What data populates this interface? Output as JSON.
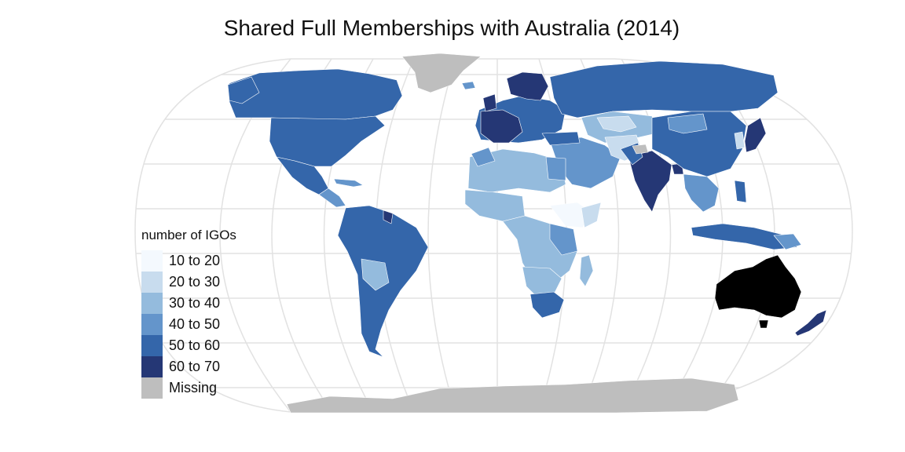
{
  "title": "Shared Full Memberships with Australia (2014)",
  "legend": {
    "title": "number of IGOs",
    "items": [
      {
        "label": "10 to 20",
        "color": "#f4f9fe"
      },
      {
        "label": "20 to 30",
        "color": "#c8dcee"
      },
      {
        "label": "30 to 40",
        "color": "#94bbdd"
      },
      {
        "label": "40 to 50",
        "color": "#6495cb"
      },
      {
        "label": "50 to 60",
        "color": "#3466aa"
      },
      {
        "label": "60 to 70",
        "color": "#253775"
      },
      {
        "label": "Missing",
        "color": "#bebebe"
      }
    ]
  },
  "colors": {
    "focus_country": "#000000",
    "graticule": "#e2e2e2",
    "country_border": "#ffffff"
  },
  "focus_country": "Australia"
}
